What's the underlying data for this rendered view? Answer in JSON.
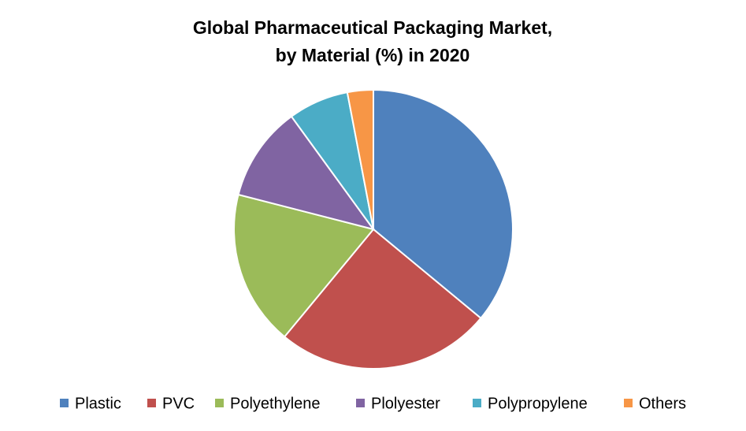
{
  "chart_data": {
    "type": "pie",
    "title": [
      "Global Pharmaceutical Packaging Market,",
      "by Material (%) in 2020"
    ],
    "categories": [
      "Plastic",
      "PVC",
      "Polyethylene",
      "Plolyester",
      "Polypropylene",
      "Others"
    ],
    "values": [
      36,
      25,
      18,
      11,
      7,
      3
    ],
    "colors": [
      "#4f81bd",
      "#c0504d",
      "#9bbb59",
      "#8064a2",
      "#4bacc6",
      "#f79646"
    ],
    "legend": "bottom"
  }
}
